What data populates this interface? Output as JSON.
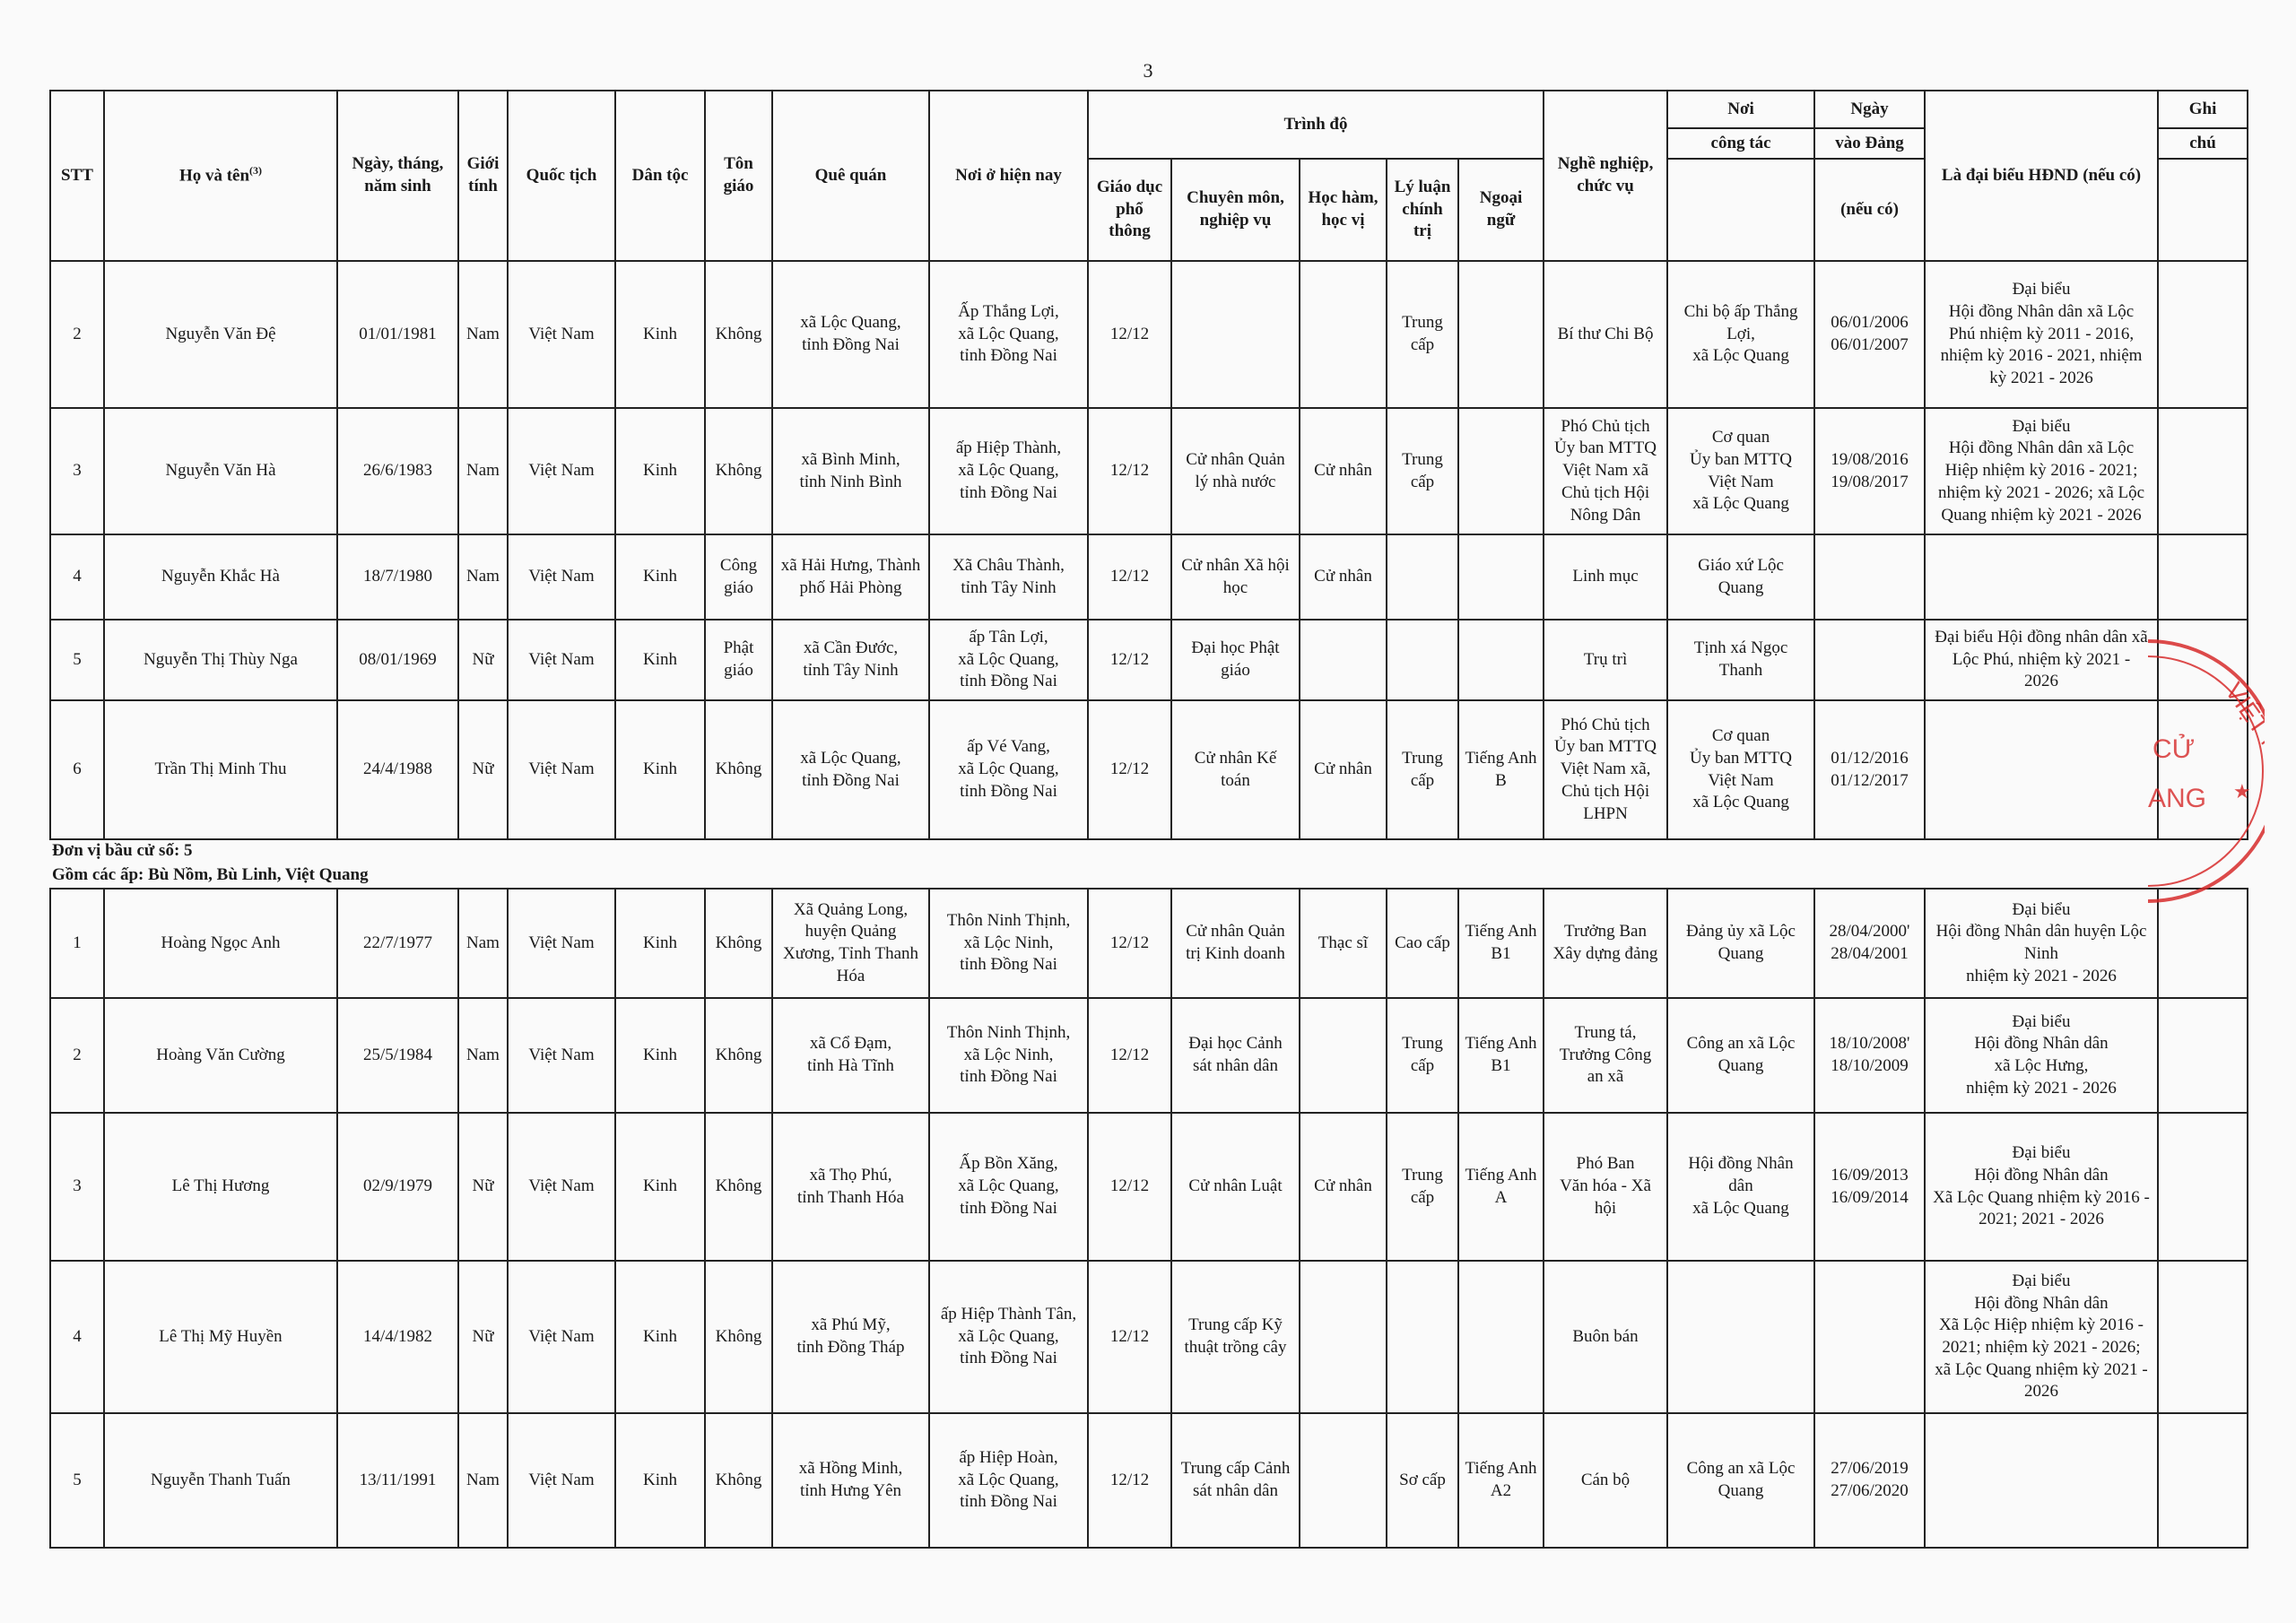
{
  "page_number": "3",
  "header": {
    "stt": "STT",
    "name": "Họ và tên",
    "name_sup": "(3)",
    "dob": "Ngày, tháng,\nnăm sinh",
    "gender": "Giới\ntính",
    "nationality": "Quốc tịch",
    "ethnicity": "Dân tộc",
    "religion": "Tôn\ngiáo",
    "hometown": "Quê quán",
    "residence": "Nơi ở hiện nay",
    "education": "Trình độ",
    "general_edu": "Giáo dục\nphổ\nthông",
    "specialty": "Chuyên môn,\nnghiệp vụ",
    "degree": "Học hàm,\nhọc vị",
    "political": "Lý luận\nchính\ntrị",
    "language": "Ngoại\nngữ",
    "occupation": "Nghề nghiệp,\nchức vụ",
    "workplace_1": "Nơi",
    "workplace_2": "công tác",
    "party_1": "Ngày",
    "party_2": "vào Đảng",
    "party_3": "(nếu có)",
    "delegate": "Là đại biểu HĐND (nếu có)",
    "note_1": "Ghi",
    "note_2": "chú"
  },
  "rows_top": [
    {
      "stt": "2",
      "name": "Nguyễn Văn Đệ",
      "dob": "01/01/1981",
      "gender": "Nam",
      "nationality": "Việt Nam",
      "ethnicity": "Kinh",
      "religion": "Không",
      "hometown": "xã Lộc Quang,\ntỉnh Đồng Nai",
      "residence": "Ấp Thắng Lợi,\nxã Lộc Quang,\ntỉnh Đồng Nai",
      "general_edu": "12/12",
      "specialty": "",
      "degree": "",
      "political": "Trung\ncấp",
      "language": "",
      "occupation": "Bí thư Chi Bộ",
      "workplace": "Chi bộ ấp Thắng\nLợi,\nxã Lộc Quang",
      "party": "06/01/2006\n06/01/2007",
      "delegate": "Đại biểu\nHội đồng Nhân dân xã Lộc\nPhú  nhiệm kỳ 2011 - 2016,\nnhiệm kỳ 2016 - 2021, nhiệm\nkỳ 2021 - 2026",
      "note": ""
    },
    {
      "stt": "3",
      "name": "Nguyễn Văn Hà",
      "dob": "26/6/1983",
      "gender": "Nam",
      "nationality": "Việt Nam",
      "ethnicity": "Kinh",
      "religion": "Không",
      "hometown": "xã Bình Minh,\ntỉnh Ninh Bình",
      "residence": "ấp Hiệp Thành,\nxã Lộc Quang,\ntỉnh Đồng Nai",
      "general_edu": "12/12",
      "specialty": "Cử nhân Quản\nlý nhà nước",
      "degree": "Cử nhân",
      "political": "Trung\ncấp",
      "language": "",
      "occupation": "Phó Chủ tịch\nỦy ban MTTQ\nViệt Nam xã\nChủ tịch Hội\nNông Dân",
      "workplace": "Cơ quan\nỦy ban MTTQ\nViệt Nam\nxã Lộc Quang",
      "party": "19/08/2016\n19/08/2017",
      "delegate": "Đại biểu\nHội đồng Nhân dân xã Lộc\nHiệp nhiệm kỳ 2016 - 2021;\nnhiệm kỳ 2021 - 2026; xã Lộc\nQuang nhiệm kỳ 2021 - 2026",
      "note": ""
    },
    {
      "stt": "4",
      "name": "Nguyễn Khắc Hà",
      "dob": "18/7/1980",
      "gender": "Nam",
      "nationality": "Việt Nam",
      "ethnicity": "Kinh",
      "religion": "Công\ngiáo",
      "hometown": "xã Hải Hưng, Thành\nphố Hải Phòng",
      "residence": "Xã Châu Thành,\ntỉnh Tây Ninh",
      "general_edu": "12/12",
      "specialty": "Cử nhân Xã hội\nhọc",
      "degree": "Cử nhân",
      "political": "",
      "language": "",
      "occupation": "Linh mục",
      "workplace": "Giáo xứ Lộc\nQuang",
      "party": "",
      "delegate": "",
      "note": ""
    },
    {
      "stt": "5",
      "name": "Nguyễn Thị Thùy Nga",
      "dob": "08/01/1969",
      "gender": "Nữ",
      "nationality": "Việt Nam",
      "ethnicity": "Kinh",
      "religion": "Phật\ngiáo",
      "hometown": "xã Cần Đước,\ntỉnh Tây Ninh",
      "residence": "ấp Tân Lợi,\nxã Lộc Quang,\ntỉnh Đồng Nai",
      "general_edu": "12/12",
      "specialty": "Đại học Phật\ngiáo",
      "degree": "",
      "political": "",
      "language": "",
      "occupation": "Trụ trì",
      "workplace": "Tịnh xá Ngọc\nThanh",
      "party": "",
      "delegate": "Đại biểu Hội đồng nhân dân xã\nLộc Phú,  nhiệm kỳ 2021 -\n2026",
      "note": ""
    },
    {
      "stt": "6",
      "name": "Trần Thị Minh Thu",
      "dob": "24/4/1988",
      "gender": "Nữ",
      "nationality": "Việt Nam",
      "ethnicity": "Kinh",
      "religion": "Không",
      "hometown": "xã Lộc Quang,\ntỉnh Đồng Nai",
      "residence": "ấp Vé Vang,\nxã Lộc Quang,\ntỉnh Đồng Nai",
      "general_edu": "12/12",
      "specialty": "Cử nhân Kế\ntoán",
      "degree": "Cử nhân",
      "political": "Trung\ncấp",
      "language": "Tiếng Anh\nB",
      "occupation": "Phó Chủ tịch\nỦy ban MTTQ\nViệt Nam xã,\nChủ tịch Hội\nLHPN",
      "workplace": "Cơ quan\nỦy ban MTTQ\nViệt Nam\nxã Lộc Quang",
      "party": "01/12/2016\n01/12/2017",
      "delegate": "",
      "note": ""
    }
  ],
  "group": {
    "unit": "Đơn vị bầu cử số: 5",
    "hamlets": "Gồm các ấp: Bù Nồm, Bù Linh, Việt Quang"
  },
  "rows_bottom": [
    {
      "stt": "1",
      "name": "Hoàng Ngọc Anh",
      "dob": "22/7/1977",
      "gender": "Nam",
      "nationality": "Việt Nam",
      "ethnicity": "Kinh",
      "religion": "Không",
      "hometown": "Xã Quảng Long,\nhuyện Quảng\nXương, Tỉnh Thanh\nHóa",
      "residence": "Thôn Ninh Thịnh,\nxã Lộc Ninh,\ntỉnh Đồng Nai",
      "general_edu": "12/12",
      "specialty": "Cử nhân Quản\ntrị Kinh doanh",
      "degree": "Thạc sĩ",
      "political": "Cao cấp",
      "language": "Tiếng Anh\nB1",
      "occupation": "Trưởng Ban\nXây dựng đảng",
      "workplace": "Đảng ủy xã Lộc\nQuang",
      "party": "28/04/2000'\n28/04/2001",
      "delegate": "Đại biểu\nHội đồng Nhân dân huyện Lộc\nNinh\nnhiệm kỳ 2021 - 2026",
      "note": ""
    },
    {
      "stt": "2",
      "name": "Hoàng Văn Cường",
      "dob": "25/5/1984",
      "gender": "Nam",
      "nationality": "Việt Nam",
      "ethnicity": "Kinh",
      "religion": "Không",
      "hometown": "xã Cổ Đạm,\ntỉnh Hà Tĩnh",
      "residence": "Thôn Ninh Thịnh,\nxã Lộc Ninh,\ntỉnh Đồng Nai",
      "general_edu": "12/12",
      "specialty": "Đại học Cảnh\nsát nhân dân",
      "degree": "",
      "political": "Trung\ncấp",
      "language": "Tiếng Anh\nB1",
      "occupation": "Trung tá,\nTrưởng Công\nan xã",
      "workplace": "Công an xã Lộc\nQuang",
      "party": "18/10/2008'\n18/10/2009",
      "delegate": "Đại biểu\nHội đồng Nhân dân\nxã Lộc Hưng,\nnhiệm kỳ 2021 - 2026",
      "note": ""
    },
    {
      "stt": "3",
      "name": "Lê Thị Hương",
      "dob": "02/9/1979",
      "gender": "Nữ",
      "nationality": "Việt Nam",
      "ethnicity": "Kinh",
      "religion": "Không",
      "hometown": "xã Thọ Phú,\ntỉnh Thanh Hóa",
      "residence": "Ấp Bồn Xăng,\nxã Lộc Quang,\ntỉnh Đồng Nai",
      "general_edu": "12/12",
      "specialty": "Cử nhân Luật",
      "degree": "Cử nhân",
      "political": "Trung\ncấp",
      "language": "Tiếng Anh\nA",
      "occupation": "Phó Ban\nVăn hóa - Xã\nhội",
      "workplace": "Hội đồng Nhân\ndân\nxã Lộc Quang",
      "party": "16/09/2013\n16/09/2014",
      "delegate": "Đại biểu\nHội đồng Nhân dân\nXã Lộc Quang nhiệm kỳ 2016 -\n2021; 2021 - 2026",
      "note": ""
    },
    {
      "stt": "4",
      "name": "Lê Thị Mỹ Huyền",
      "dob": "14/4/1982",
      "gender": "Nữ",
      "nationality": "Việt Nam",
      "ethnicity": "Kinh",
      "religion": "Không",
      "hometown": "xã Phú Mỹ,\ntỉnh Đồng Tháp",
      "residence": "ấp Hiệp Thành Tân,\nxã Lộc Quang,\ntỉnh Đồng Nai",
      "general_edu": "12/12",
      "specialty": "Trung cấp Kỹ\nthuật trồng cây",
      "degree": "",
      "political": "",
      "language": "",
      "occupation": "Buôn bán",
      "workplace": "",
      "party": "",
      "delegate": "Đại biểu\nHội đồng Nhân dân\nXã Lộc Hiệp nhiệm kỳ 2016 -\n2021; nhiệm kỳ 2021 - 2026;\nxã Lộc Quang nhiệm kỳ 2021 -\n2026",
      "note": ""
    },
    {
      "stt": "5",
      "name": "Nguyễn Thanh Tuấn",
      "dob": "13/11/1991",
      "gender": "Nam",
      "nationality": "Việt Nam",
      "ethnicity": "Kinh",
      "religion": "Không",
      "hometown": "xã Hồng Minh,\ntỉnh Hưng Yên",
      "residence": "ấp Hiệp Hoàn,\nxã Lộc Quang,\ntỉnh Đồng Nai",
      "general_edu": "12/12",
      "specialty": "Trung cấp Cảnh\nsát nhân dân",
      "degree": "",
      "political": "Sơ cấp",
      "language": "Tiếng Anh\nA2",
      "occupation": "Cán bộ",
      "workplace": "Công an xã Lộc\nQuang",
      "party": "27/06/2019\n27/06/2020",
      "delegate": "",
      "note": ""
    }
  ],
  "stamp": {
    "color": "#d62a2a",
    "text_1": "VIỆT NAM",
    "text_2": "CỬ",
    "text_3": "ANG"
  }
}
